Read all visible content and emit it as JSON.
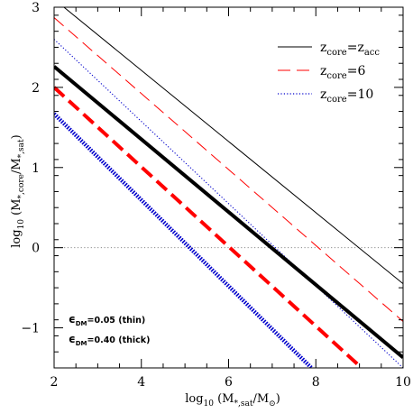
{
  "chart_data": {
    "type": "line",
    "xlabel_prefix": "log",
    "xlabel_sub": "10",
    "xlabel_body": " (M",
    "xlabel_sub2": "*,sat",
    "xlabel_mid": "/M",
    "xlabel_sub3": "⊙",
    "xlabel_end": ")",
    "ylabel_prefix": "log",
    "ylabel_sub": "10",
    "ylabel_body": " (M",
    "ylabel_sub2": "*,core",
    "ylabel_mid": "/M",
    "ylabel_sub3": "*,sat",
    "ylabel_end": ")",
    "xlim": [
      2,
      10
    ],
    "ylim": [
      -1.5,
      3
    ],
    "xticks": [
      2,
      4,
      6,
      8,
      10
    ],
    "xtick_labels": [
      "2",
      "4",
      "6",
      "8",
      "10"
    ],
    "yticks": [
      -1,
      0,
      1,
      2,
      3
    ],
    "ytick_labels": [
      "−1",
      "0",
      "1",
      "2",
      "3"
    ],
    "reference_line": {
      "y": 0,
      "style": "dotted",
      "color": "#888888"
    },
    "series": [
      {
        "name_main": "z",
        "name_sub": "core",
        "name_eq": "=z",
        "name_sub2": "acc",
        "name_tail": "",
        "style": "solid",
        "color": "#000000",
        "weight": "thin",
        "x": [
          2,
          10
        ],
        "y": [
          3.1,
          -0.45
        ]
      },
      {
        "name_main": "z",
        "name_sub": "core",
        "name_eq": "=6",
        "name_sub2": "",
        "name_tail": "",
        "style": "dashed",
        "color": "#ff0000",
        "weight": "thin",
        "x": [
          2,
          10
        ],
        "y": [
          2.87,
          -0.92
        ]
      },
      {
        "name_main": "z",
        "name_sub": "core",
        "name_eq": "=10",
        "name_sub2": "",
        "name_tail": "",
        "style": "dotted",
        "color": "#0000cc",
        "weight": "thin",
        "x": [
          2,
          10
        ],
        "y": [
          2.6,
          -1.5
        ]
      },
      {
        "name_main": "",
        "name_sub": "",
        "name_eq": "",
        "name_sub2": "",
        "name_tail": "",
        "style": "solid",
        "color": "#000000",
        "weight": "thick",
        "x": [
          2,
          10
        ],
        "y": [
          2.26,
          -1.37
        ]
      },
      {
        "name_main": "",
        "name_sub": "",
        "name_eq": "",
        "name_sub2": "",
        "name_tail": "",
        "style": "dashed",
        "color": "#ff0000",
        "weight": "thick",
        "x": [
          2,
          9.05
        ],
        "y": [
          2.0,
          -1.5
        ]
      },
      {
        "name_main": "",
        "name_sub": "",
        "name_eq": "",
        "name_sub2": "",
        "name_tail": "",
        "style": "dotted",
        "color": "#0000cc",
        "weight": "thick",
        "x": [
          2,
          7.9
        ],
        "y": [
          1.67,
          -1.5
        ]
      }
    ],
    "legend": {
      "placement": "top-right",
      "entries": [
        0,
        1,
        2
      ]
    },
    "annotations": [
      {
        "sym": "ϵ",
        "sub": "DM",
        "text": "=0.05 (thin)"
      },
      {
        "sym": "ϵ",
        "sub": "DM",
        "text": "=0.40 (thick)"
      }
    ],
    "grid": false
  }
}
